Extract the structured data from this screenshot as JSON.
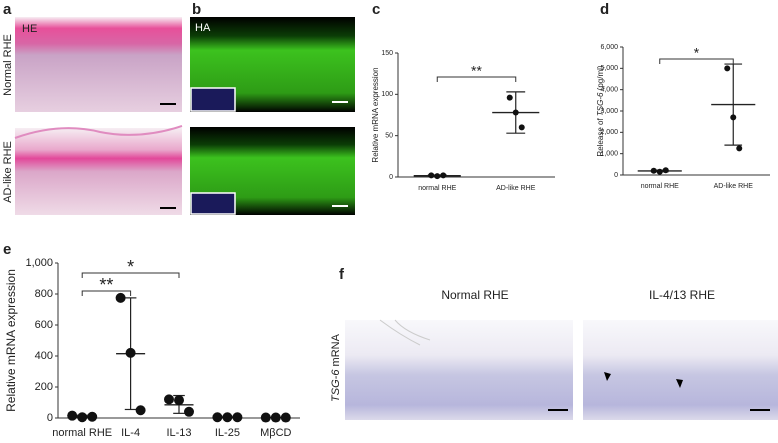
{
  "panels": {
    "a": {
      "letter": "a",
      "stain": "HE",
      "rows": [
        "Normal RHE",
        "AD-like RHE"
      ]
    },
    "b": {
      "letter": "b",
      "stain": "HA"
    },
    "c": {
      "letter": "c"
    },
    "d": {
      "letter": "d"
    },
    "e": {
      "letter": "e"
    },
    "f": {
      "letter": "f",
      "columns": [
        "Normal RHE",
        "IL-4/13 RHE"
      ],
      "side_label": [
        "TSG-6",
        " mRNA"
      ]
    }
  },
  "chart_data": [
    {
      "type": "scatter",
      "ylabel": "Relative mRNA expression",
      "categories": [
        "normal RHE",
        "AD-like RHE"
      ],
      "values": [
        [
          2,
          1,
          2
        ],
        [
          96,
          78,
          60
        ]
      ],
      "mean": [
        1.5,
        78
      ],
      "lower": [
        0.5,
        53
      ],
      "upper": [
        2.5,
        103
      ],
      "ylim": [
        0,
        150
      ],
      "yticks": [
        0,
        50,
        100,
        150
      ],
      "annotations": [
        {
          "text": "**",
          "between": [
            "normal RHE",
            "AD-like RHE"
          ]
        }
      ]
    },
    {
      "type": "scatter",
      "ylabel": [
        "Release of ",
        "TSG-6",
        " (pg/ml)"
      ],
      "categories": [
        "normal RHE",
        "AD-like RHE"
      ],
      "values": [
        [
          200,
          150,
          220
        ],
        [
          5000,
          2700,
          1250
        ]
      ],
      "mean": [
        190,
        3300
      ],
      "lower": [
        150,
        1400
      ],
      "upper": [
        230,
        5200
      ],
      "ylim": [
        0,
        6000
      ],
      "yticks": [
        0,
        {
          "value": 1000,
          "label": "1,000"
        },
        {
          "value": 2000,
          "label": "2,000"
        },
        {
          "value": 3000,
          "label": "3,000"
        },
        {
          "value": 4000,
          "label": "4,000"
        },
        {
          "value": 5000,
          "label": "5,000"
        },
        {
          "value": 6000,
          "label": "6,000"
        }
      ],
      "annotations": [
        {
          "text": "*",
          "between": [
            "normal RHE",
            "AD-like RHE"
          ]
        }
      ]
    },
    {
      "type": "scatter",
      "ylabel": "Relative mRNA expression",
      "categories": [
        "normal RHE",
        "IL-4",
        "IL-13",
        "IL-25",
        "MβCD"
      ],
      "values": [
        [
          15,
          5,
          8
        ],
        [
          775,
          420,
          50
        ],
        [
          120,
          115,
          40
        ],
        [
          5,
          5,
          5
        ],
        [
          3,
          3,
          3
        ]
      ],
      "mean": [
        8,
        415,
        85,
        5,
        3
      ],
      "lower": [
        3,
        55,
        30,
        3,
        2
      ],
      "upper": [
        18,
        775,
        145,
        7,
        4
      ],
      "ylim": [
        0,
        1000
      ],
      "yticks": [
        0,
        200,
        400,
        600,
        800,
        {
          "value": 1000,
          "label": "1,000"
        }
      ],
      "annotations": [
        {
          "text": "**",
          "between": [
            "normal RHE",
            "IL-4"
          ]
        },
        {
          "text": "*",
          "between": [
            "normal RHE",
            "IL-13"
          ]
        }
      ]
    }
  ]
}
